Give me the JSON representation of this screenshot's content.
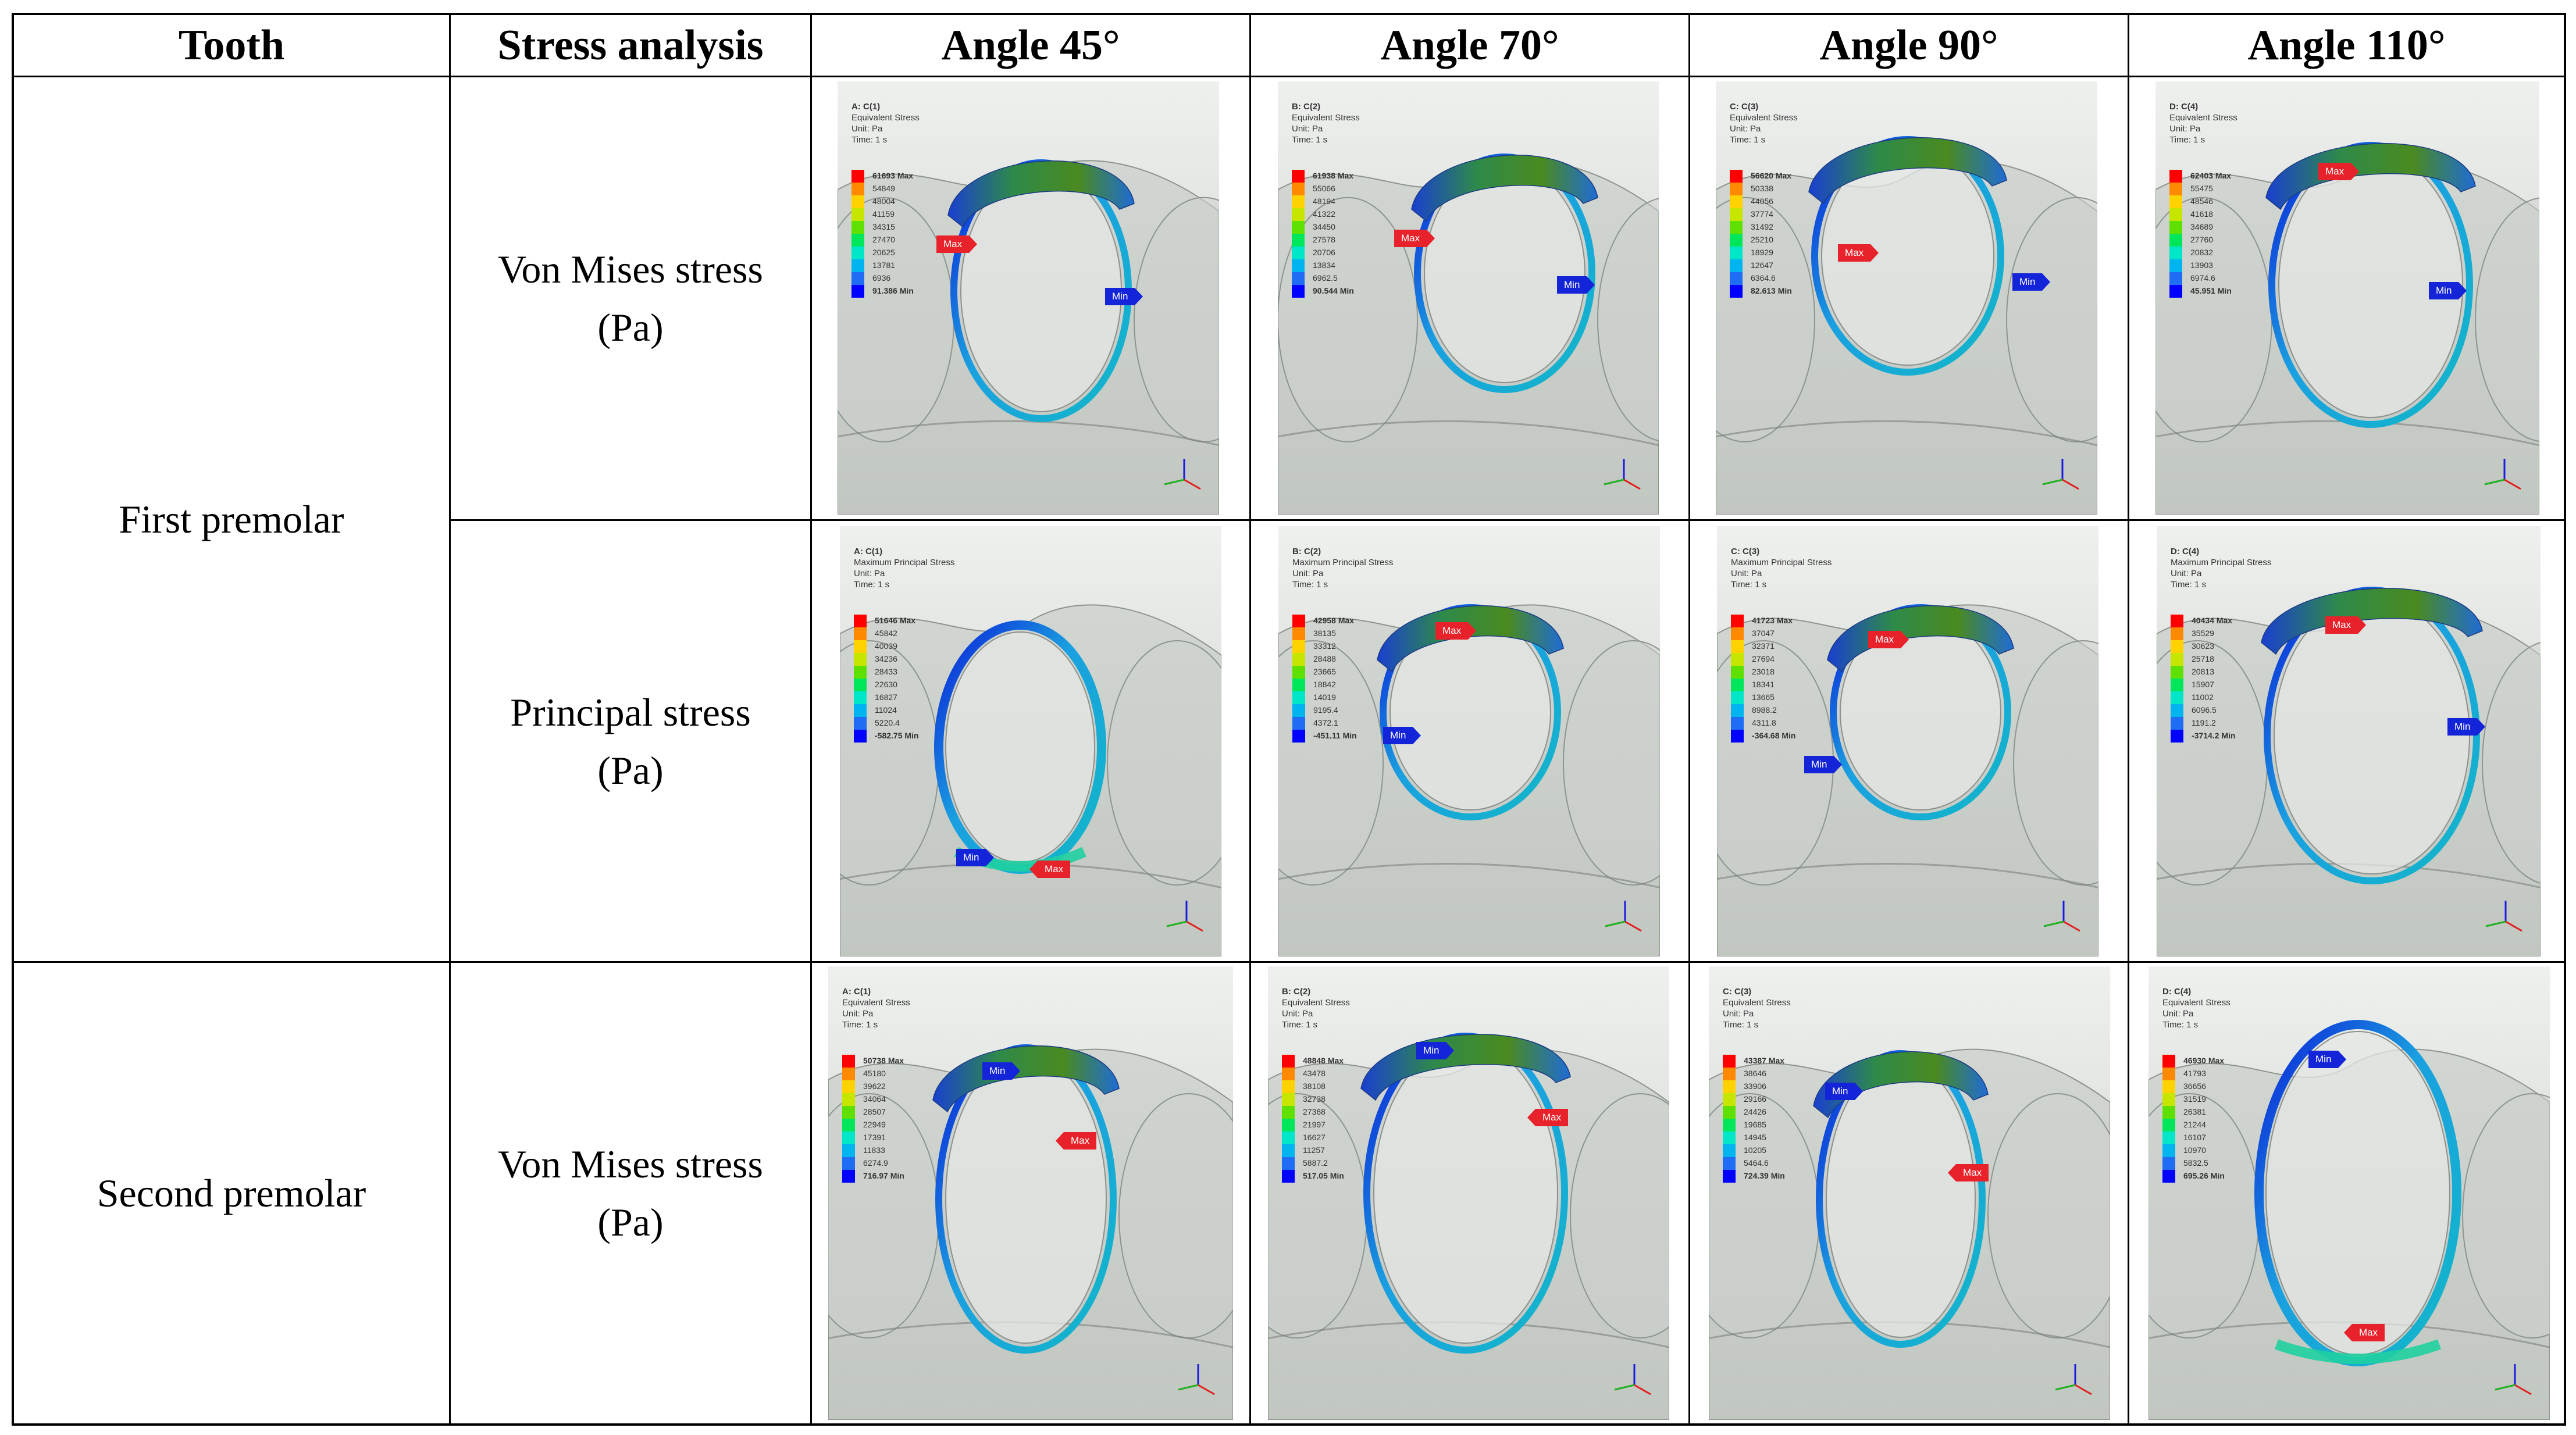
{
  "header": {
    "tooth": "Tooth",
    "stress_analysis": "Stress analysis",
    "angle_45": "Angle 45°",
    "angle_70": "Angle 70°",
    "angle_90": "Angle 90°",
    "angle_110": "Angle 110°"
  },
  "rows": {
    "first_premolar": "First premolar",
    "second_premolar": "Second premolar",
    "von_mises_1_line1": "Von Mises stress",
    "von_mises_1_line2": "(Pa)",
    "principal_line1": "Principal stress",
    "principal_line2": "(Pa)",
    "von_mises_2_line1": "Von Mises stress",
    "von_mises_2_line2": "(Pa)"
  },
  "legend_colors": [
    "#ff0000",
    "#ff8a00",
    "#ffd200",
    "#c6e600",
    "#5ee000",
    "#00e65a",
    "#00e6c8",
    "#00b4f0",
    "#1f6cf5",
    "#0000ff"
  ],
  "panels": {
    "p1_45": {
      "id": "A: C(1)",
      "type": "Equivalent Stress",
      "unit": "Unit: Pa",
      "time": "Time: 1 s",
      "values": [
        "61693 Max",
        "54849",
        "48004",
        "41159",
        "34315",
        "27470",
        "20625",
        "13781",
        "6936",
        "91.386 Min"
      ],
      "max_label": "Max",
      "min_label": "Min"
    },
    "p1_70": {
      "id": "B: C(2)",
      "type": "Equivalent Stress",
      "unit": "Unit: Pa",
      "time": "Time: 1 s",
      "values": [
        "61938 Max",
        "55066",
        "48194",
        "41322",
        "34450",
        "27578",
        "20706",
        "13834",
        "6962.5",
        "90.544 Min"
      ],
      "max_label": "Max",
      "min_label": "Min"
    },
    "p1_90": {
      "id": "C: C(3)",
      "type": "Equivalent Stress",
      "unit": "Unit: Pa",
      "time": "Time: 1 s",
      "values": [
        "56620 Max",
        "50338",
        "44056",
        "37774",
        "31492",
        "25210",
        "18929",
        "12647",
        "6364.6",
        "82.613 Min"
      ],
      "max_label": "Max",
      "min_label": "Min"
    },
    "p1_110": {
      "id": "D: C(4)",
      "type": "Equivalent Stress",
      "unit": "Unit: Pa",
      "time": "Time: 1 s",
      "values": [
        "62403 Max",
        "55475",
        "48546",
        "41618",
        "34689",
        "27760",
        "20832",
        "13903",
        "6974.6",
        "45.951 Min"
      ],
      "max_label": "Max",
      "min_label": "Min"
    },
    "p2_45": {
      "id": "A: C(1)",
      "type": "Maximum Principal Stress",
      "unit": "Unit: Pa",
      "time": "Time: 1 s",
      "values": [
        "51646 Max",
        "45842",
        "40039",
        "34236",
        "28433",
        "22630",
        "16827",
        "11024",
        "5220.4",
        "-582.75 Min"
      ],
      "max_label": "Max",
      "min_label": "Min"
    },
    "p2_70": {
      "id": "B: C(2)",
      "type": "Maximum Principal Stress",
      "unit": "Unit: Pa",
      "time": "Time: 1 s",
      "values": [
        "42958 Max",
        "38135",
        "33312",
        "28488",
        "23665",
        "18842",
        "14019",
        "9195.4",
        "4372.1",
        "-451.11 Min"
      ],
      "max_label": "Max",
      "min_label": "Min"
    },
    "p2_90": {
      "id": "C: C(3)",
      "type": "Maximum Principal Stress",
      "unit": "Unit: Pa",
      "time": "Time: 1 s",
      "values": [
        "41723 Max",
        "37047",
        "32371",
        "27694",
        "23018",
        "18341",
        "13665",
        "8988.2",
        "4311.8",
        "-364.68 Min"
      ],
      "max_label": "Max",
      "min_label": "Min"
    },
    "p2_110": {
      "id": "D: C(4)",
      "type": "Maximum Principal Stress",
      "unit": "Unit: Pa",
      "time": "Time: 1 s",
      "values": [
        "40434 Max",
        "35529",
        "30623",
        "25718",
        "20813",
        "15907",
        "11002",
        "6096.5",
        "1191.2",
        "-3714.2 Min"
      ],
      "max_label": "Max",
      "min_label": "Min"
    },
    "p3_45": {
      "id": "A: C(1)",
      "type": "Equivalent Stress",
      "unit": "Unit: Pa",
      "time": "Time: 1 s",
      "values": [
        "50738 Max",
        "45180",
        "39622",
        "34064",
        "28507",
        "22949",
        "17391",
        "11833",
        "6274.9",
        "716.97 Min"
      ],
      "max_label": "Max",
      "min_label": "Min"
    },
    "p3_70": {
      "id": "B: C(2)",
      "type": "Equivalent Stress",
      "unit": "Unit: Pa",
      "time": "Time: 1 s",
      "values": [
        "48848 Max",
        "43478",
        "38108",
        "32738",
        "27368",
        "21997",
        "16627",
        "11257",
        "5887.2",
        "517.05 Min"
      ],
      "max_label": "Max",
      "min_label": "Min"
    },
    "p3_90": {
      "id": "C: C(3)",
      "type": "Equivalent Stress",
      "unit": "Unit: Pa",
      "time": "Time: 1 s",
      "values": [
        "43387 Max",
        "38646",
        "33906",
        "29166",
        "24426",
        "19685",
        "14945",
        "10205",
        "5464.6",
        "724.39 Min"
      ],
      "max_label": "Max",
      "min_label": "Min"
    },
    "p3_110": {
      "id": "D: C(4)",
      "type": "Equivalent Stress",
      "unit": "Unit: Pa",
      "time": "Time: 1 s",
      "values": [
        "46930 Max",
        "41793",
        "36656",
        "31519",
        "26381",
        "21244",
        "16107",
        "10970",
        "5832.5",
        "695.26 Min"
      ],
      "max_label": "Max",
      "min_label": "Min"
    }
  }
}
